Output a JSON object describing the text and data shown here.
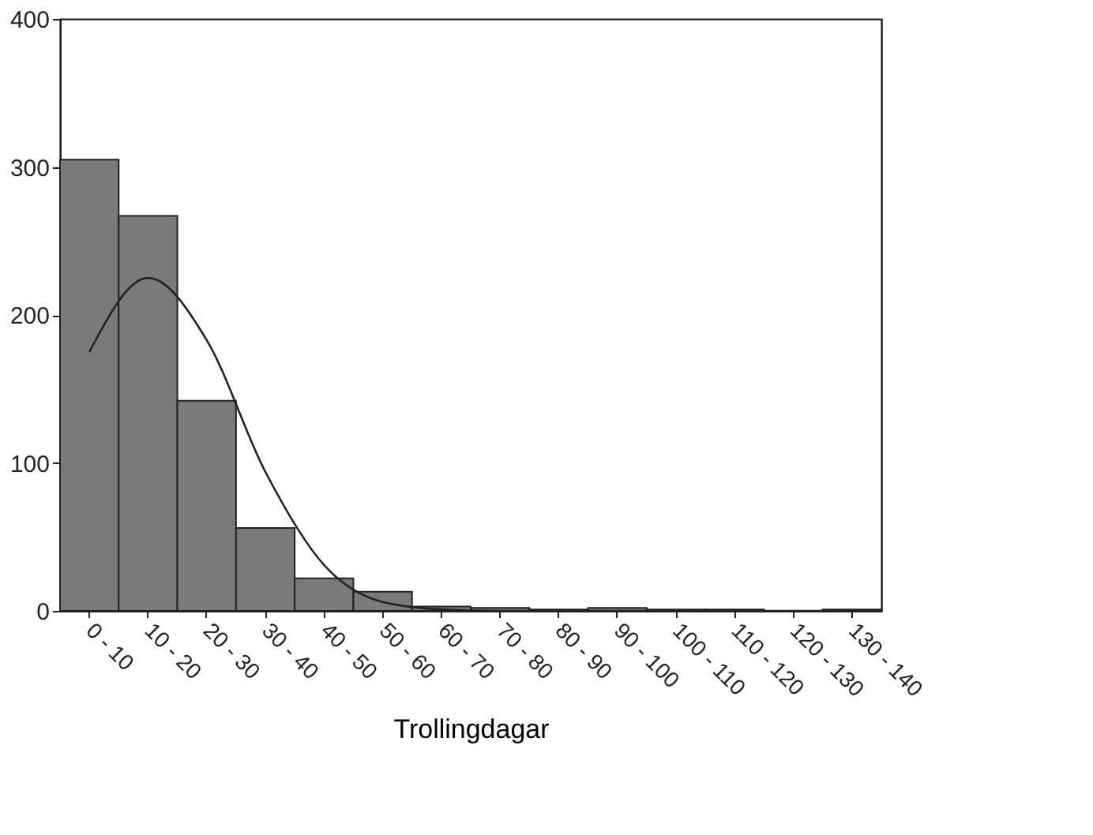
{
  "chart_data": {
    "type": "bar",
    "xlabel": "Trollingdagar",
    "categories": [
      "0 - 10",
      "10 - 20",
      "20 - 30",
      "30 - 40",
      "40 - 50",
      "50 - 60",
      "60 - 70",
      "70 - 80",
      "80 - 90",
      "90 - 100",
      "100 - 110",
      "110 - 120",
      "120 - 130",
      "130 - 140"
    ],
    "ylim": [
      0,
      400
    ],
    "yticks": [
      0,
      100,
      200,
      300,
      400
    ],
    "grid": false,
    "series": [
      {
        "color": "#7a7a7a",
        "values": [
          305,
          267,
          142,
          56,
          22,
          13,
          3,
          2,
          1,
          2,
          1,
          1,
          0,
          1
        ]
      },
      {
        "type": "line",
        "color": "#222222",
        "values": [
          175,
          225,
          183,
          94,
          31,
          6,
          1,
          0,
          0,
          0,
          0,
          0,
          0,
          0
        ]
      }
    ]
  }
}
